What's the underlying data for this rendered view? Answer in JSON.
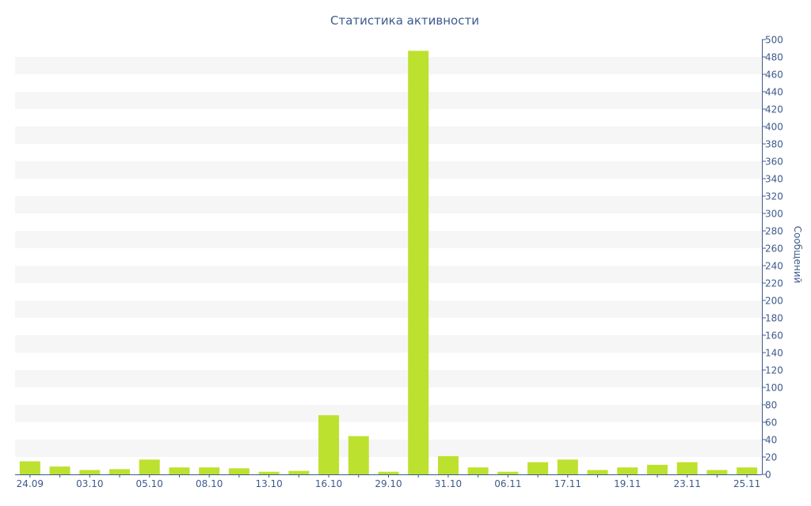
{
  "chart_data": {
    "type": "bar",
    "title": "Статистика активности",
    "xlabel": "",
    "ylabel": "Сообщений",
    "ylim": [
      0,
      500
    ],
    "y_ticks": [
      0,
      20,
      40,
      60,
      80,
      100,
      120,
      140,
      160,
      180,
      200,
      220,
      240,
      260,
      280,
      300,
      320,
      340,
      360,
      380,
      400,
      420,
      440,
      460,
      480,
      500
    ],
    "y_axis_position": "right",
    "grid": "alternating horizontal bands",
    "categories": [
      "24.09",
      "",
      "03.10",
      "",
      "05.10",
      "",
      "08.10",
      "",
      "13.10",
      "",
      "16.10",
      "",
      "29.10",
      "",
      "31.10",
      "",
      "06.11",
      "",
      "17.11",
      "",
      "19.11",
      "",
      "23.11",
      "",
      "25.11"
    ],
    "values": [
      15,
      9,
      5,
      6,
      17,
      8,
      8,
      7,
      3,
      4,
      68,
      44,
      3,
      487,
      21,
      8,
      3,
      14,
      17,
      5,
      8,
      11,
      14,
      5,
      8
    ],
    "colors": {
      "bar": "#bde12f",
      "axis": "#3e5a8c",
      "band": "#f6f6f6"
    }
  }
}
